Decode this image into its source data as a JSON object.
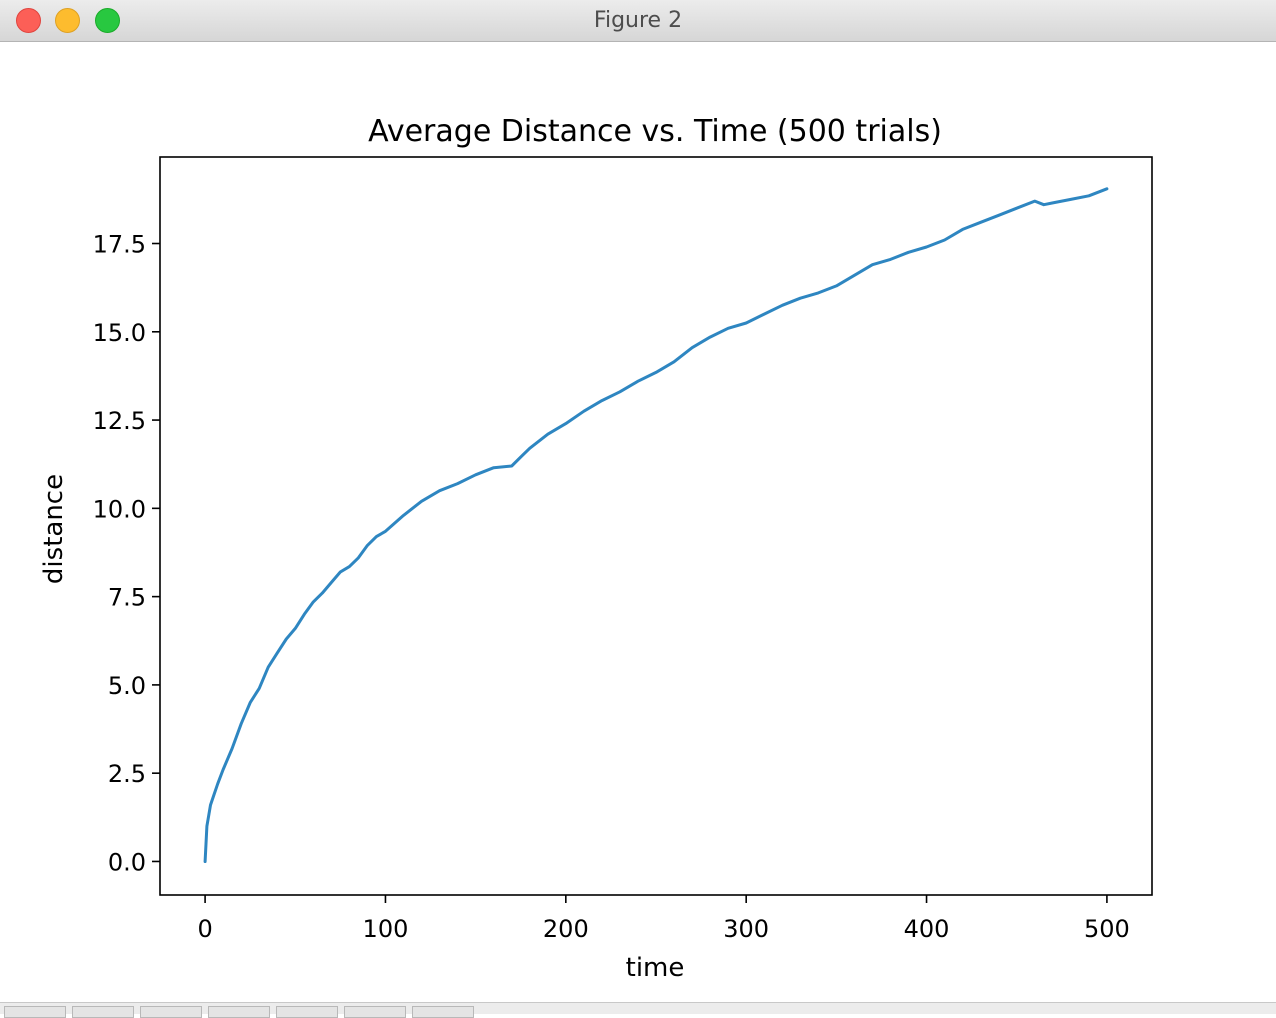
{
  "window": {
    "title": "Figure 2"
  },
  "chart_data": {
    "type": "line",
    "title": "Average Distance vs. Time (500 trials)",
    "xlabel": "time",
    "ylabel": "distance",
    "xlim": [
      -25,
      525
    ],
    "ylim": [
      -0.95,
      19.95
    ],
    "xticks": [
      0,
      100,
      200,
      300,
      400,
      500
    ],
    "xtick_labels": [
      "0",
      "100",
      "200",
      "300",
      "400",
      "500"
    ],
    "yticks": [
      0,
      2.5,
      5,
      7.5,
      10,
      12.5,
      15,
      17.5
    ],
    "ytick_labels": [
      "0.0",
      "2.5",
      "5.0",
      "7.5",
      "10.0",
      "12.5",
      "15.0",
      "17.5"
    ],
    "grid": false,
    "color": "#2e86c1",
    "series": [
      {
        "x": [
          0,
          1,
          2,
          3,
          5,
          7,
          10,
          15,
          20,
          25,
          30,
          35,
          40,
          45,
          50,
          55,
          60,
          65,
          70,
          75,
          80,
          85,
          90,
          95,
          100,
          110,
          120,
          130,
          140,
          150,
          160,
          170,
          175,
          180,
          190,
          200,
          210,
          220,
          230,
          240,
          250,
          260,
          270,
          280,
          290,
          300,
          310,
          320,
          330,
          340,
          350,
          360,
          370,
          380,
          390,
          400,
          410,
          420,
          430,
          440,
          450,
          460,
          465,
          470,
          480,
          490,
          500
        ],
        "y": [
          0.0,
          1.0,
          1.3,
          1.6,
          1.9,
          2.2,
          2.6,
          3.2,
          3.9,
          4.5,
          4.9,
          5.5,
          5.9,
          6.3,
          6.6,
          7.0,
          7.35,
          7.6,
          7.9,
          8.2,
          8.35,
          8.6,
          8.95,
          9.2,
          9.35,
          9.8,
          10.2,
          10.5,
          10.7,
          10.95,
          11.15,
          11.2,
          11.45,
          11.7,
          12.1,
          12.4,
          12.75,
          13.05,
          13.3,
          13.6,
          13.85,
          14.15,
          14.55,
          14.85,
          15.1,
          15.25,
          15.5,
          15.75,
          15.95,
          16.1,
          16.3,
          16.6,
          16.9,
          17.05,
          17.25,
          17.4,
          17.6,
          17.9,
          18.1,
          18.3,
          18.5,
          18.7,
          18.6,
          18.65,
          18.75,
          18.85,
          19.05
        ]
      }
    ]
  }
}
